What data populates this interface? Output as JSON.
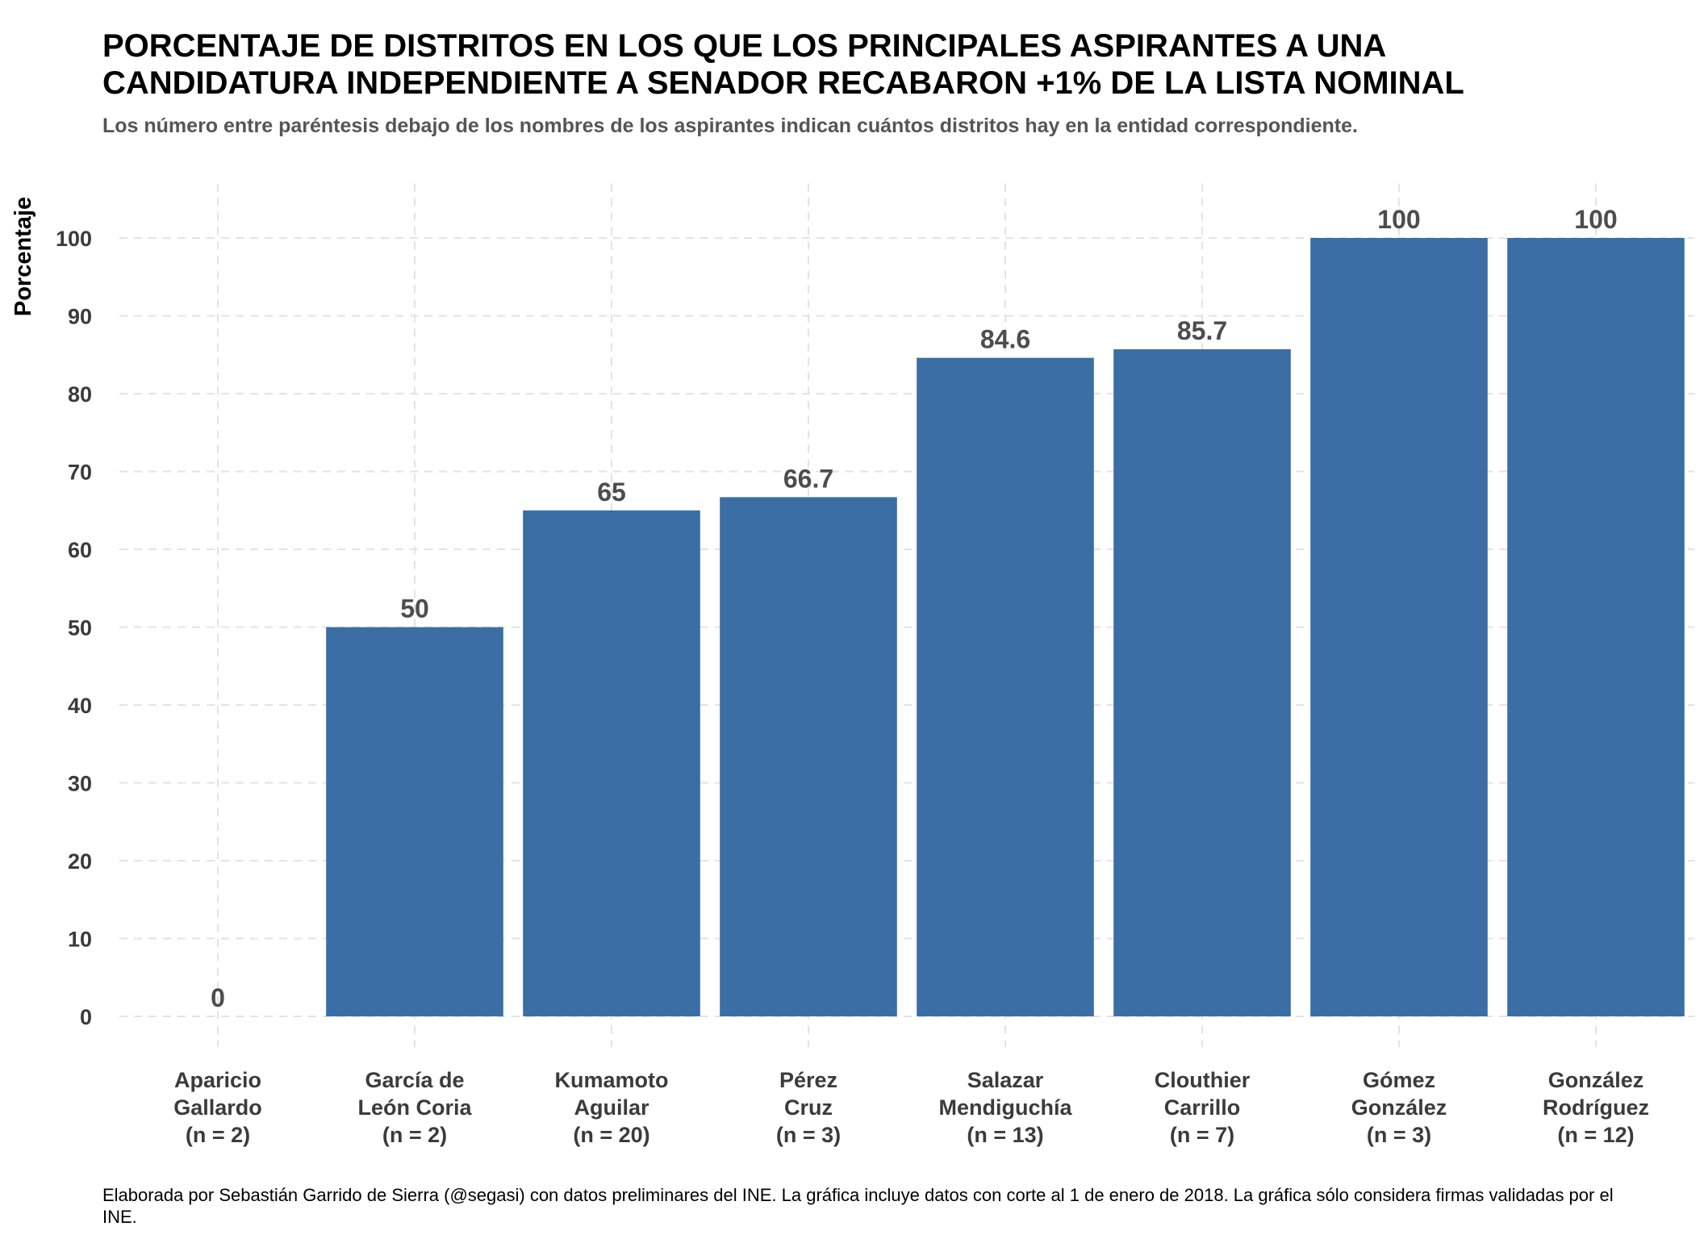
{
  "chart_data": {
    "type": "bar",
    "title": [
      "PORCENTAJE DE DISTRITOS EN LOS QUE LOS PRINCIPALES ASPIRANTES A UNA",
      "CANDIDATURA INDEPENDIENTE A SENADOR RECABARON +1% DE LA LISTA NOMINAL"
    ],
    "subtitle": "Los número entre paréntesis debajo de los nombres de los aspirantes indican cuántos distritos hay en la entidad correspondiente.",
    "ylabel": "Porcentaje",
    "xlabel": "",
    "ylim": [
      0,
      107
    ],
    "yticks": [
      0,
      10,
      20,
      30,
      40,
      50,
      60,
      70,
      80,
      90,
      100
    ],
    "grid": true,
    "bar_color": "#3a6ea5",
    "categories": [
      [
        "Aparicio",
        "Gallardo",
        "(n = 2)"
      ],
      [
        "García de",
        "León Coria",
        "(n = 2)"
      ],
      [
        "Kumamoto",
        "Aguilar",
        "(n = 20)"
      ],
      [
        "Pérez",
        "Cruz",
        "(n = 3)"
      ],
      [
        "Salazar",
        "Mendiguchía",
        "(n = 13)"
      ],
      [
        "Clouthier",
        "Carrillo",
        "(n = 7)"
      ],
      [
        "Gómez",
        "González",
        "(n = 3)"
      ],
      [
        "González",
        "Rodríguez",
        "(n =  12)"
      ]
    ],
    "values": [
      0,
      50,
      65,
      66.7,
      84.6,
      85.7,
      100,
      100
    ],
    "value_labels": [
      "0",
      "50",
      "65",
      "66.7",
      "84.6",
      "85.7",
      "100",
      "100"
    ],
    "caption": "Elaborada por Sebastián Garrido de Sierra (@segasi) con datos preliminares del INE. La gráfica incluye datos con corte al 1 de enero de 2018. La gráfica sólo considera firmas validadas por el INE."
  }
}
